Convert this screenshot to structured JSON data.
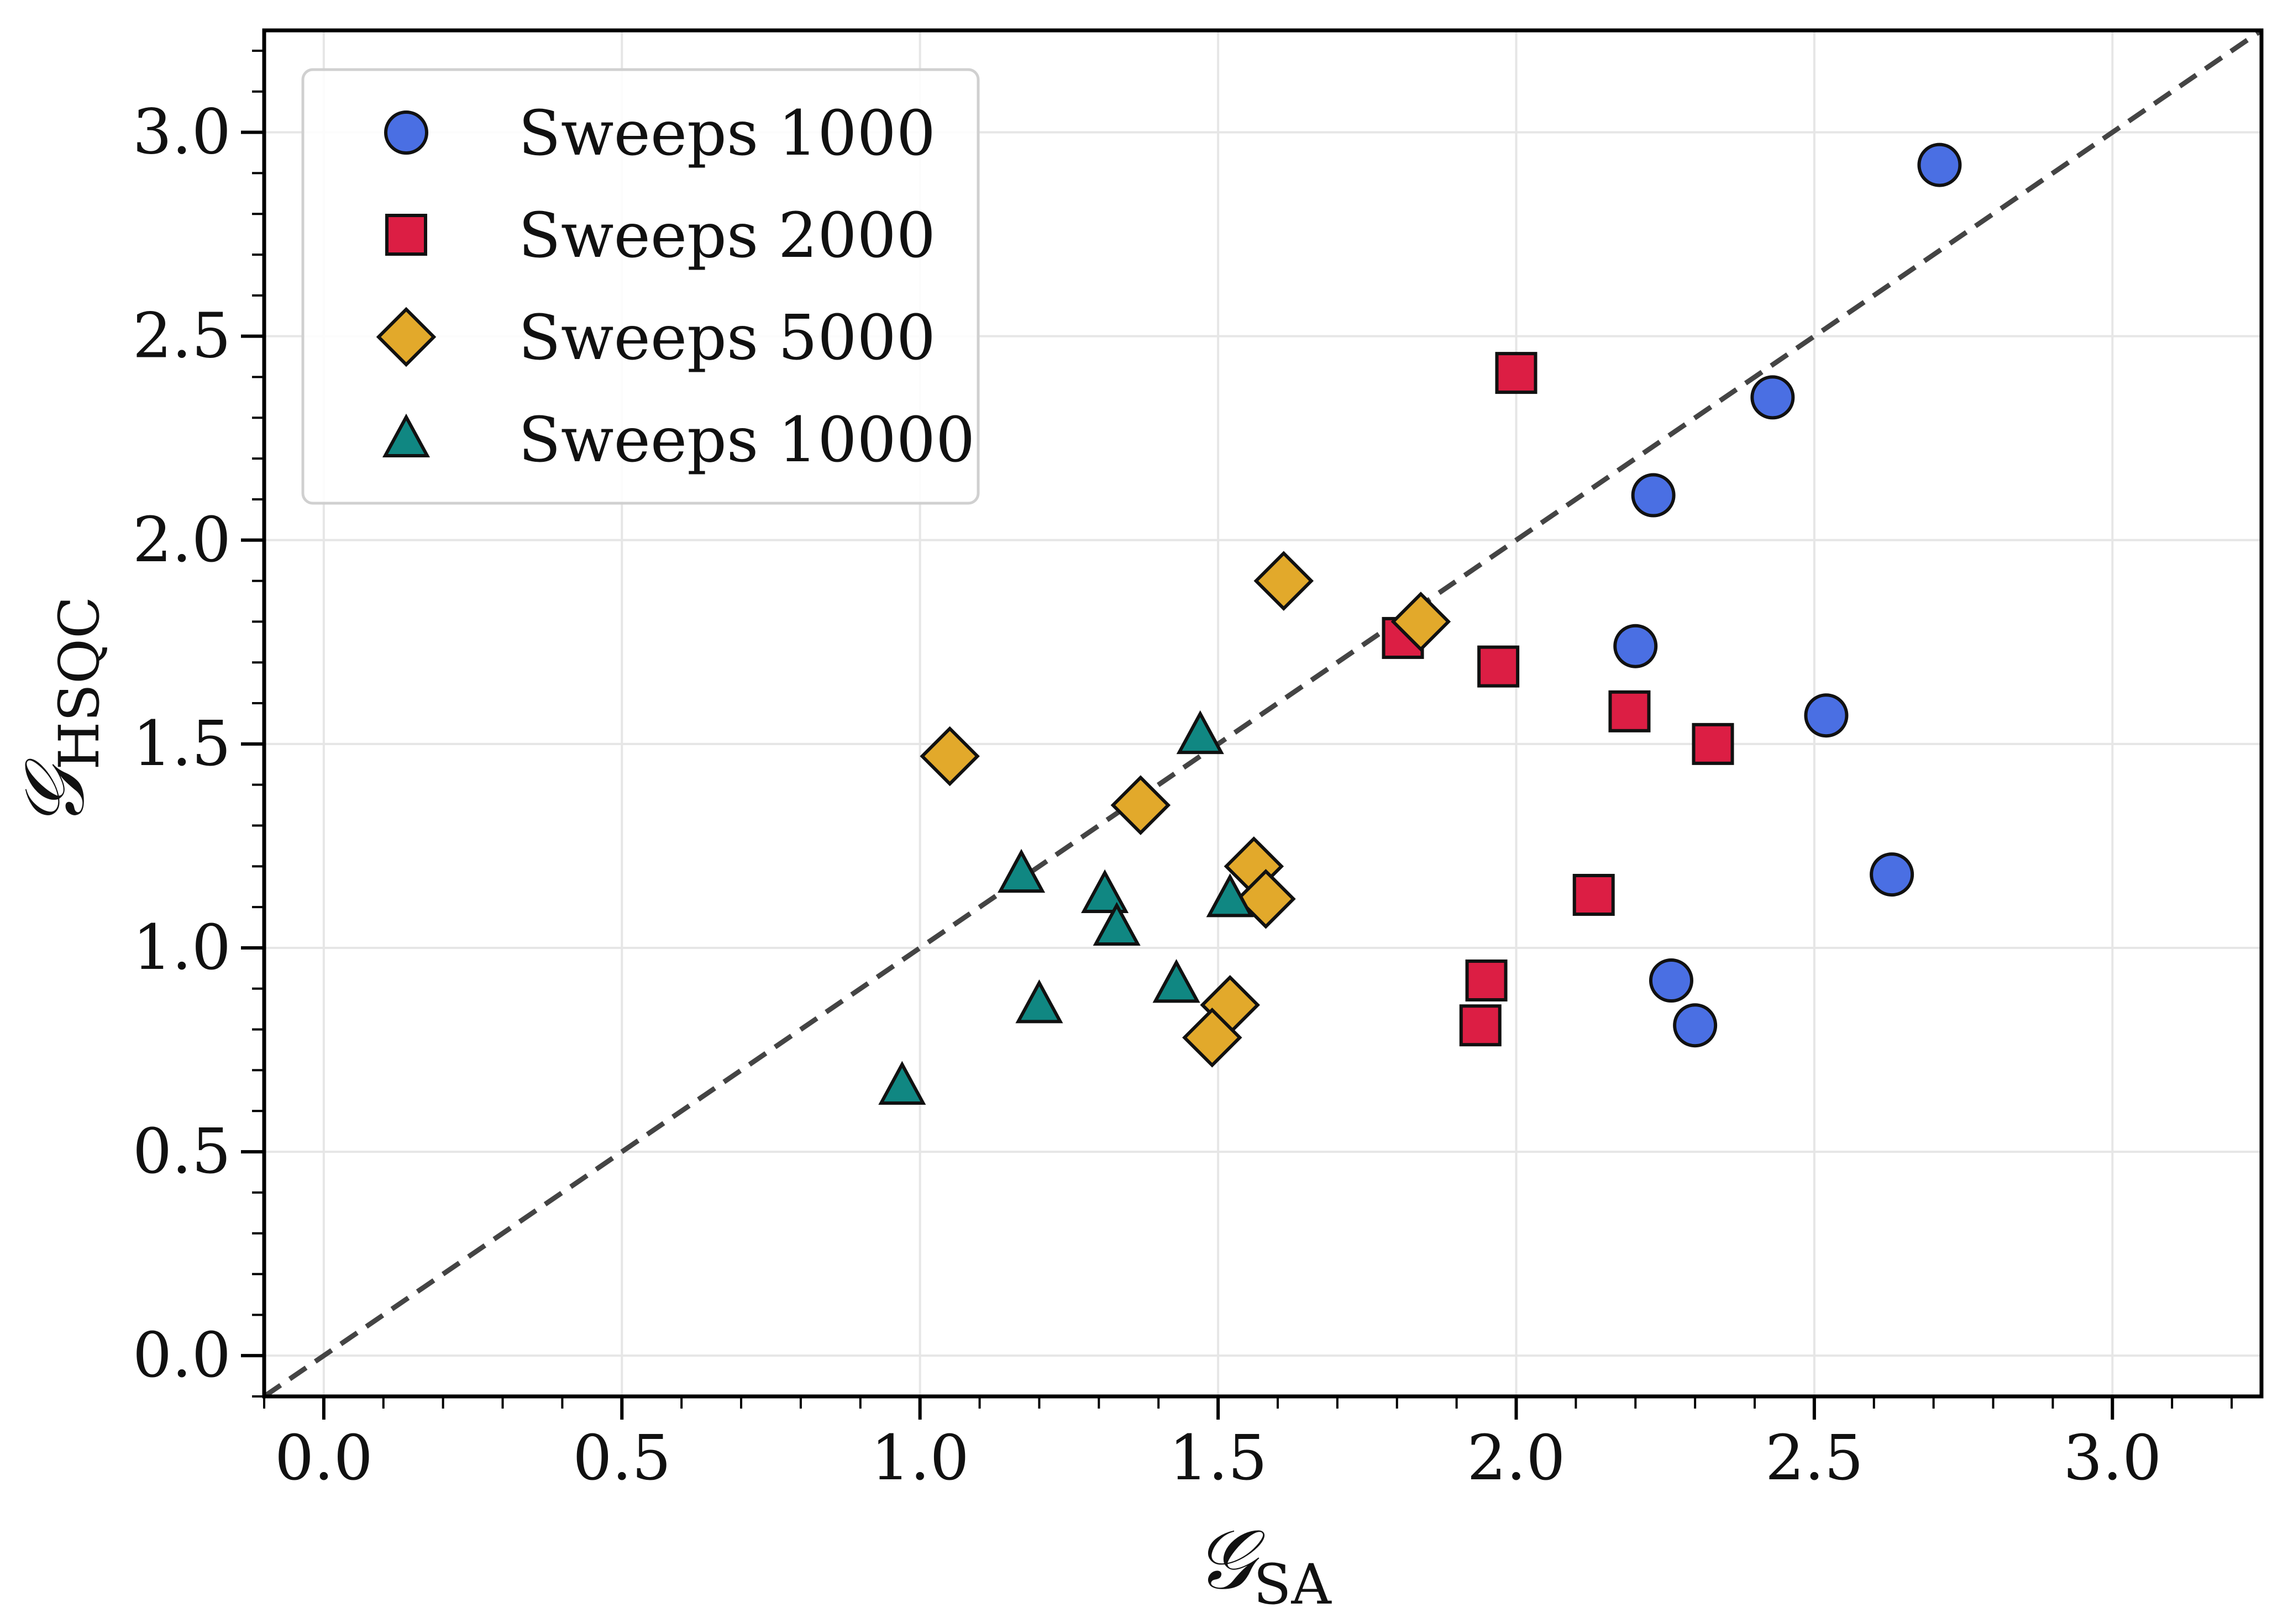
{
  "chart_data": {
    "type": "scatter",
    "title": "",
    "xlabel": {
      "main": "𝒢",
      "sub": "SA"
    },
    "ylabel": {
      "main": "𝒢",
      "sub": "HSQC"
    },
    "xlim": [
      -0.1,
      3.25
    ],
    "ylim": [
      -0.1,
      3.25
    ],
    "xticks": [
      0.0,
      0.5,
      1.0,
      1.5,
      2.0,
      2.5,
      3.0
    ],
    "yticks": [
      0.0,
      0.5,
      1.0,
      1.5,
      2.0,
      2.5,
      3.0
    ],
    "xtick_labels": [
      "0.0",
      "0.5",
      "1.0",
      "1.5",
      "2.0",
      "2.5",
      "3.0"
    ],
    "ytick_labels": [
      "0.0",
      "0.5",
      "1.0",
      "1.5",
      "2.0",
      "2.5",
      "3.0"
    ],
    "grid": true,
    "legend_position": "top-left",
    "reference_line": {
      "type": "y=x",
      "style": "dashed",
      "color": "#444444"
    },
    "series": [
      {
        "name": "Sweeps 1000",
        "marker": "circle",
        "color": "#4a6fe3",
        "points": [
          {
            "x": 2.71,
            "y": 2.92
          },
          {
            "x": 2.43,
            "y": 2.35
          },
          {
            "x": 2.23,
            "y": 2.11
          },
          {
            "x": 2.2,
            "y": 1.74
          },
          {
            "x": 2.52,
            "y": 1.57
          },
          {
            "x": 2.63,
            "y": 1.18
          },
          {
            "x": 2.26,
            "y": 0.92
          },
          {
            "x": 2.3,
            "y": 0.81
          }
        ]
      },
      {
        "name": "Sweeps 2000",
        "marker": "square",
        "color": "#dc1e44",
        "points": [
          {
            "x": 2.0,
            "y": 2.41
          },
          {
            "x": 1.81,
            "y": 1.76
          },
          {
            "x": 1.97,
            "y": 1.69
          },
          {
            "x": 2.19,
            "y": 1.58
          },
          {
            "x": 2.33,
            "y": 1.5
          },
          {
            "x": 2.13,
            "y": 1.13
          },
          {
            "x": 1.95,
            "y": 0.92
          },
          {
            "x": 1.94,
            "y": 0.81
          }
        ]
      },
      {
        "name": "Sweeps 5000",
        "marker": "diamond",
        "color": "#e2a92b",
        "points": [
          {
            "x": 1.61,
            "y": 1.9
          },
          {
            "x": 1.84,
            "y": 1.8
          },
          {
            "x": 1.05,
            "y": 1.47
          },
          {
            "x": 1.37,
            "y": 1.35
          },
          {
            "x": 1.56,
            "y": 1.2
          },
          {
            "x": 1.58,
            "y": 1.12
          },
          {
            "x": 1.52,
            "y": 0.86
          },
          {
            "x": 1.49,
            "y": 0.78
          }
        ]
      },
      {
        "name": "Sweeps 10000",
        "marker": "triangle",
        "color": "#108782",
        "points": [
          {
            "x": 1.47,
            "y": 1.52
          },
          {
            "x": 1.17,
            "y": 1.18
          },
          {
            "x": 1.31,
            "y": 1.13
          },
          {
            "x": 1.52,
            "y": 1.12
          },
          {
            "x": 1.33,
            "y": 1.05
          },
          {
            "x": 1.43,
            "y": 0.91
          },
          {
            "x": 1.2,
            "y": 0.86
          },
          {
            "x": 0.97,
            "y": 0.66
          }
        ]
      }
    ]
  }
}
